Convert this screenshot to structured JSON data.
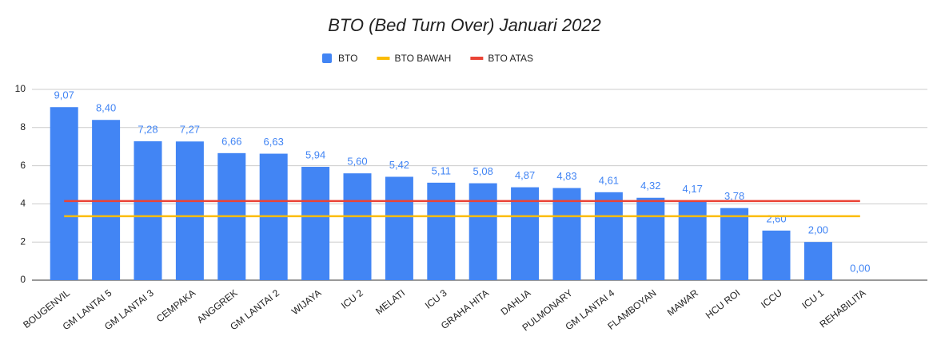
{
  "chart_data": {
    "type": "bar",
    "title": "BTO (Bed Turn Over) Januari 2022",
    "categories": [
      "BOUGENVIL",
      "GM LANTAI 5",
      "GM LANTAI 3",
      "CEMPAKA",
      "ANGGREK",
      "GM LANTAI 2",
      "WIJAYA",
      "ICU 2",
      "MELATI",
      "ICU 3",
      "GRAHA HITA",
      "DAHLIA",
      "PULMONARY",
      "GM LANTAI 4",
      "FLAMBOYAN",
      "MAWAR",
      "HCU ROI",
      "ICCU",
      "ICU 1",
      "REHABILITA"
    ],
    "series": [
      {
        "name": "BTO",
        "color": "#4285f4",
        "type": "bar",
        "values": [
          9.07,
          8.4,
          7.28,
          7.27,
          6.66,
          6.63,
          5.94,
          5.6,
          5.42,
          5.11,
          5.08,
          4.87,
          4.83,
          4.61,
          4.32,
          4.17,
          3.78,
          2.6,
          2.0,
          0.0
        ],
        "value_labels": [
          "9,07",
          "8,40",
          "7,28",
          "7,27",
          "6,66",
          "6,63",
          "5,94",
          "5,60",
          "5,42",
          "5,11",
          "5,08",
          "4,87",
          "4,83",
          "4,61",
          "4,32",
          "4,17",
          "3,78",
          "2,60",
          "2,00",
          "0,00"
        ]
      },
      {
        "name": "BTO BAWAH",
        "color": "#fbbc04",
        "type": "line",
        "values": [
          3.35,
          3.35,
          3.35,
          3.35,
          3.35,
          3.35,
          3.35,
          3.35,
          3.35,
          3.35,
          3.35,
          3.35,
          3.35,
          3.35,
          3.35,
          3.35,
          3.35,
          3.35,
          3.35,
          3.35
        ]
      },
      {
        "name": "BTO ATAS",
        "color": "#ea4335",
        "type": "line",
        "values": [
          4.15,
          4.15,
          4.15,
          4.15,
          4.15,
          4.15,
          4.15,
          4.15,
          4.15,
          4.15,
          4.15,
          4.15,
          4.15,
          4.15,
          4.15,
          4.15,
          4.15,
          4.15,
          4.15,
          4.15
        ]
      }
    ],
    "ylim": [
      0,
      10
    ],
    "yticks": [
      0,
      2,
      4,
      6,
      8,
      10
    ],
    "grid": true,
    "legend": "top"
  }
}
